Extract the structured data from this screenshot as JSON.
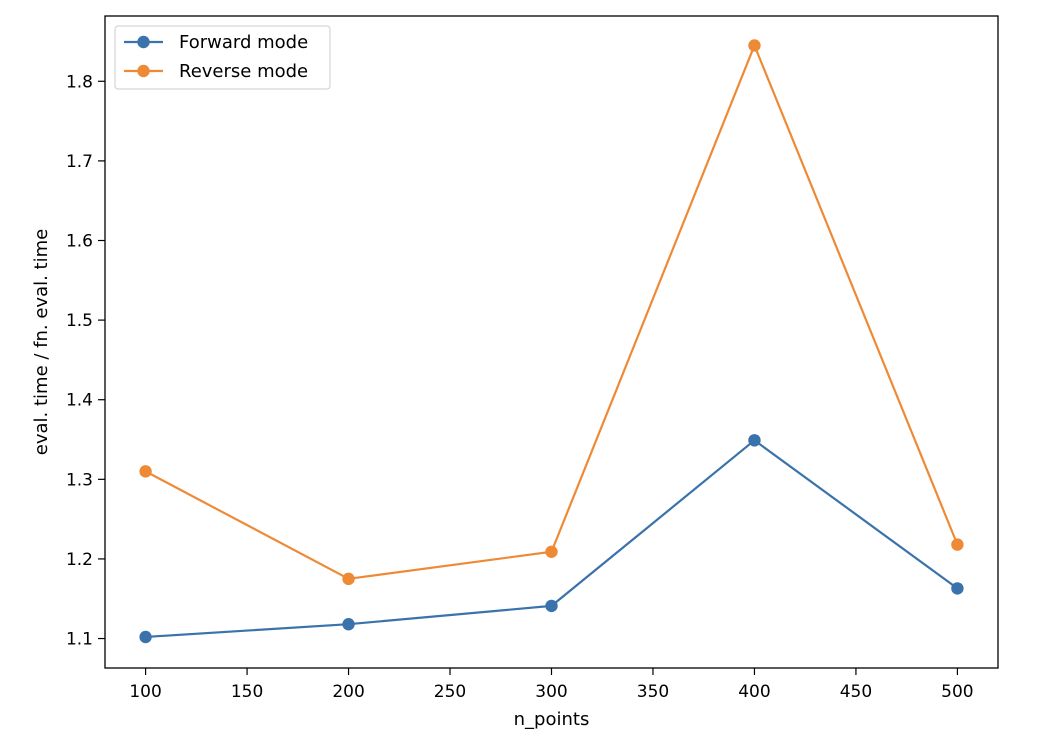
{
  "chart_data": {
    "type": "line",
    "title": "",
    "xlabel": "n_points",
    "ylabel": "eval. time / fn. eval. time",
    "x": [
      100,
      200,
      300,
      400,
      500
    ],
    "series": [
      {
        "name": "Forward mode",
        "values": [
          1.102,
          1.118,
          1.141,
          1.349,
          1.163
        ],
        "color": "#3a72ab"
      },
      {
        "name": "Reverse mode",
        "values": [
          1.31,
          1.175,
          1.209,
          1.845,
          1.218
        ],
        "color": "#ee8a36"
      }
    ],
    "xlim": [
      80,
      520
    ],
    "ylim": [
      1.063,
      1.882
    ],
    "xticks": [
      100,
      150,
      200,
      250,
      300,
      350,
      400,
      450,
      500
    ],
    "yticks": [
      1.1,
      1.2,
      1.3,
      1.4,
      1.5,
      1.6,
      1.7,
      1.8
    ],
    "xtick_labels": [
      "100",
      "150",
      "200",
      "250",
      "300",
      "350",
      "400",
      "450",
      "500"
    ],
    "ytick_labels": [
      "1.1",
      "1.2",
      "1.3",
      "1.4",
      "1.5",
      "1.6",
      "1.7",
      "1.8"
    ],
    "legend_position": "upper-left",
    "grid": false,
    "markers": "circle"
  }
}
